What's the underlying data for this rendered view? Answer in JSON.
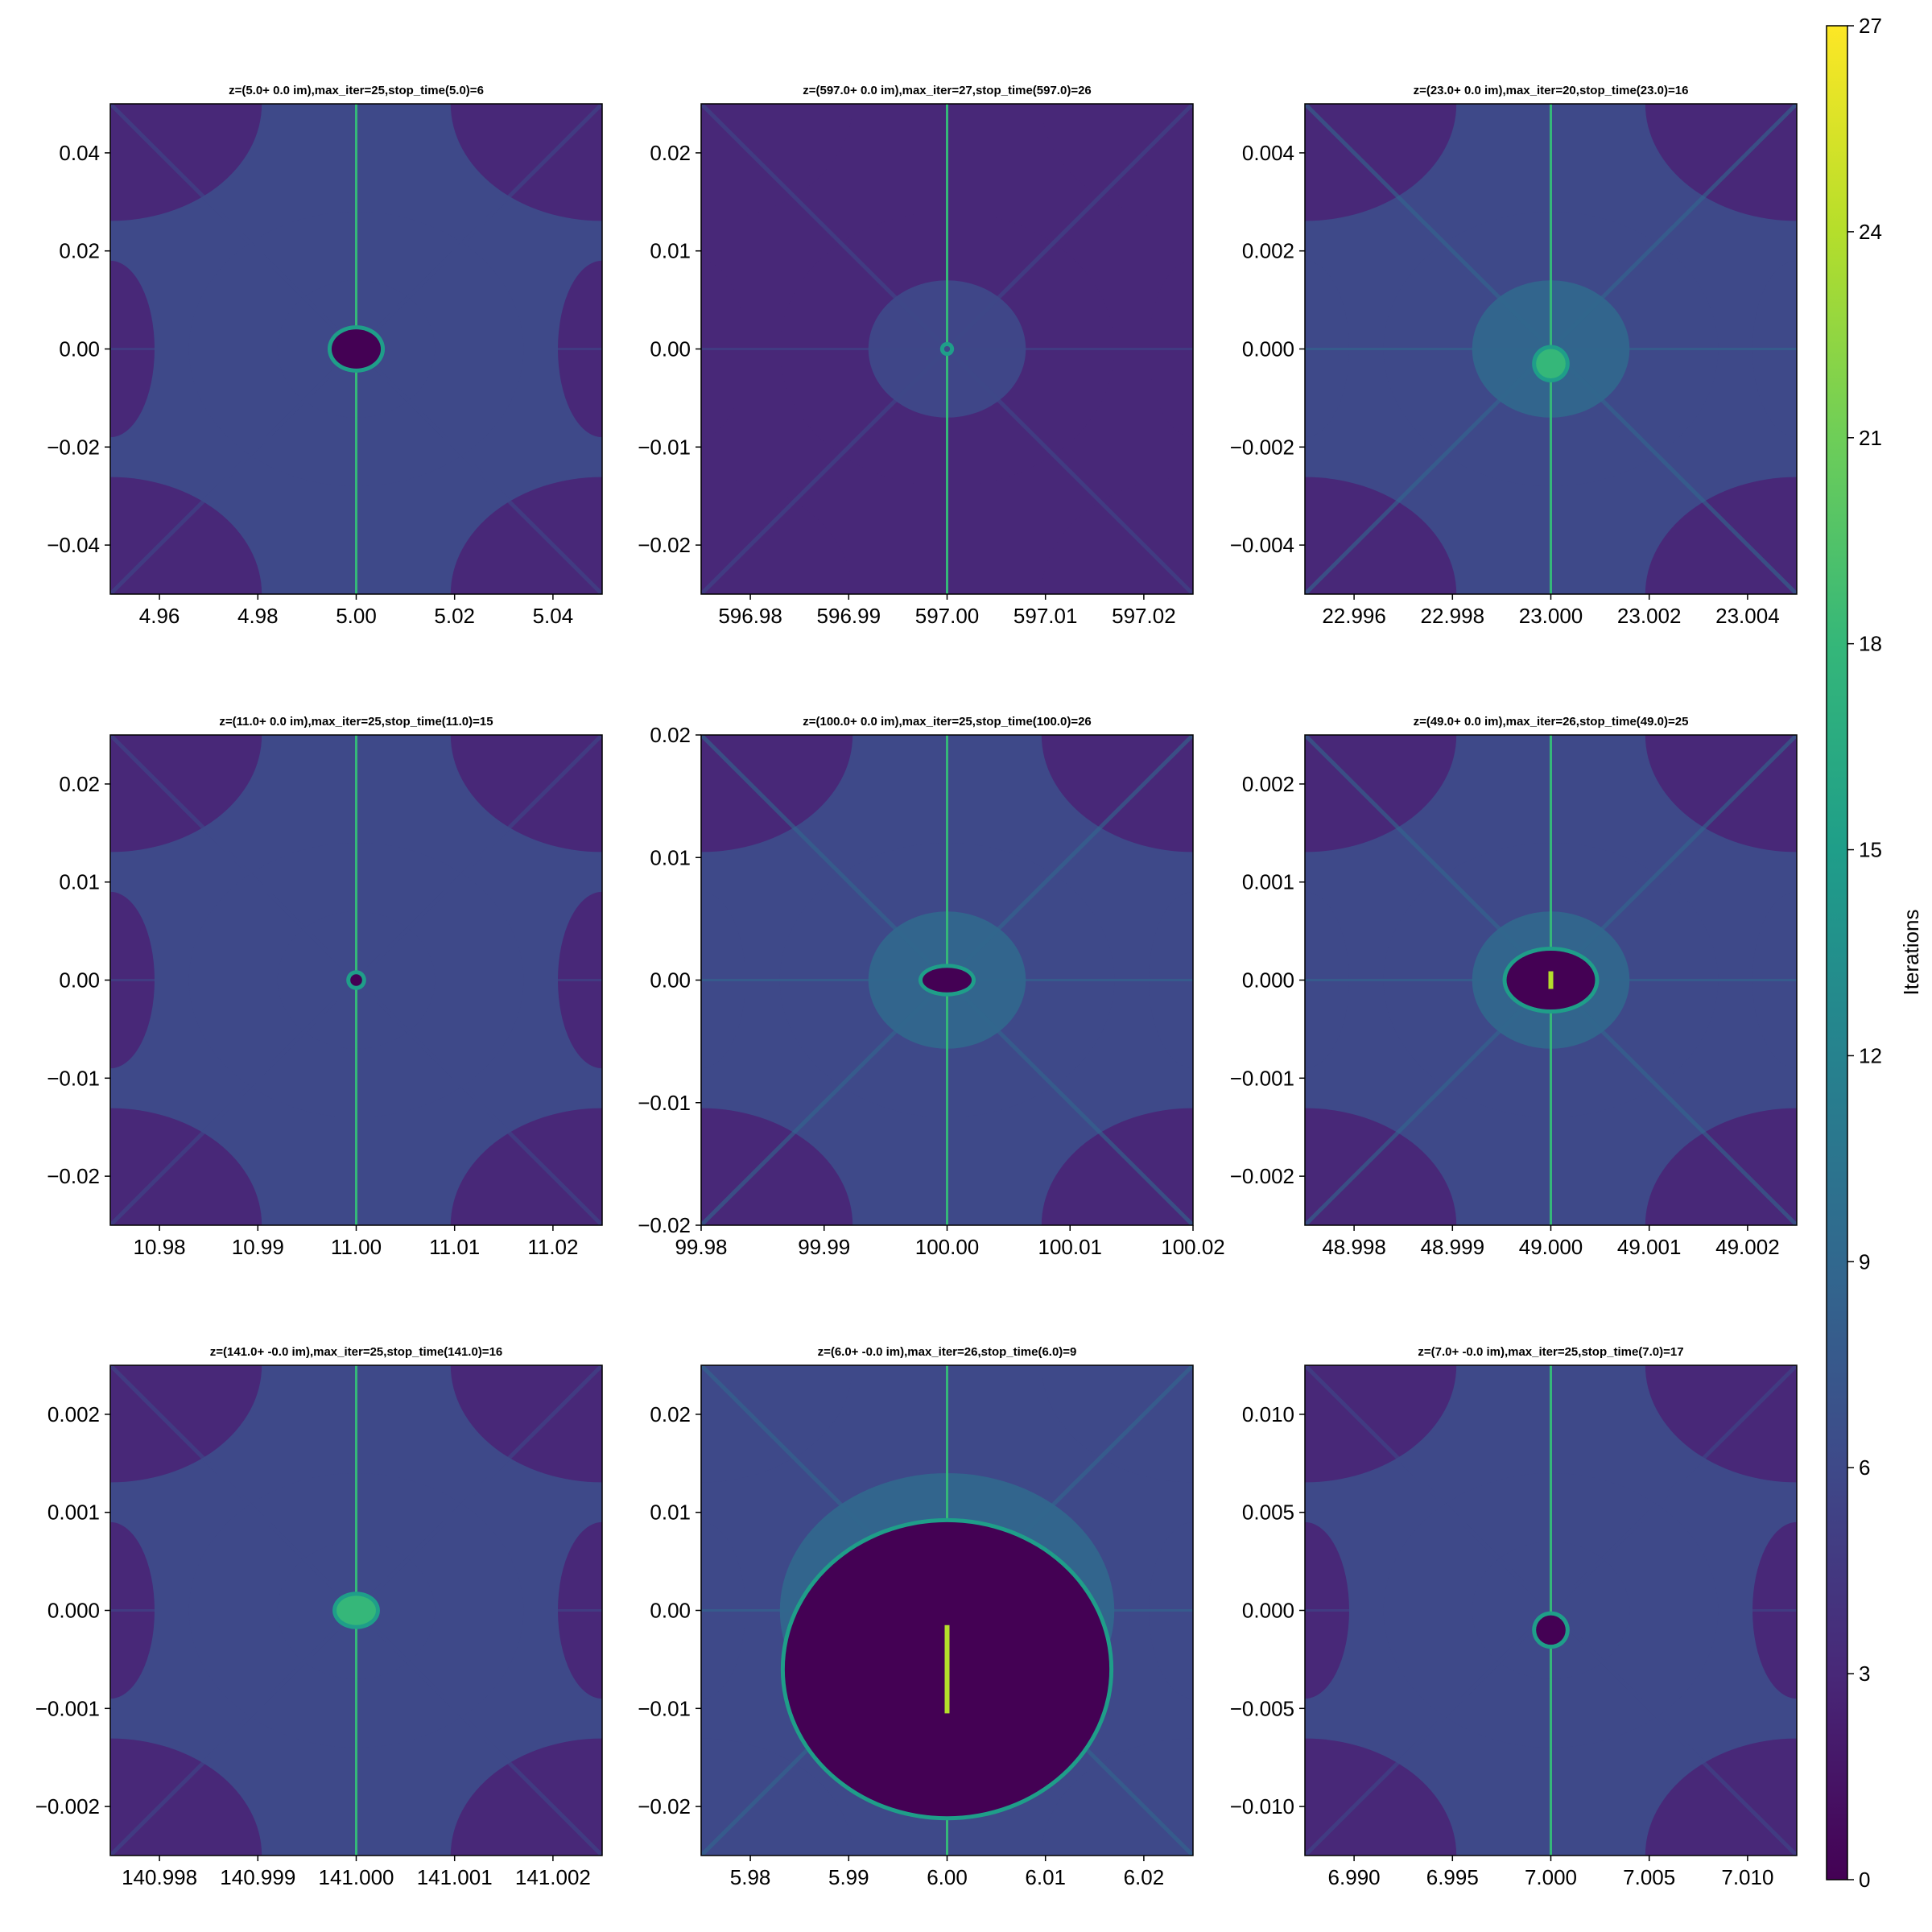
{
  "chart_data": {
    "type": "heatmap",
    "colormap": "viridis",
    "colorbar": {
      "label": "Iterations",
      "range": [
        0,
        27
      ],
      "ticks": [
        "0",
        "3",
        "6",
        "9",
        "12",
        "15",
        "18",
        "21",
        "24",
        "27"
      ]
    },
    "panels": [
      {
        "title": "z=(5.0+ 0.0 im),max_iter=25,stop_time(5.0)=6",
        "xlim": [
          4.95,
          5.05
        ],
        "ylim": [
          -0.05,
          0.05
        ],
        "xticks": [
          {
            "v": 4.96,
            "t": "4.96"
          },
          {
            "v": 4.98,
            "t": "4.98"
          },
          {
            "v": 5.0,
            "t": "5.00"
          },
          {
            "v": 5.02,
            "t": "5.02"
          },
          {
            "v": 5.04,
            "t": "5.04"
          }
        ],
        "yticks": [
          {
            "v": 0.04,
            "t": "0.04"
          },
          {
            "v": 0.02,
            "t": "0.02"
          },
          {
            "v": 0,
            "t": "0.00"
          },
          {
            "v": -0.02,
            "t": "−0.02"
          },
          {
            "v": -0.04,
            "t": "−0.04"
          }
        ],
        "background_level": 5,
        "center_blob": {
          "rx": 0.05,
          "ry": 0.04,
          "cy": 0.0,
          "inner_level": 0
        }
      },
      {
        "title": "z=(597.0+ 0.0 im),max_iter=27,stop_time(597.0)=26",
        "xlim": [
          596.975,
          597.025
        ],
        "ylim": [
          -0.025,
          0.025
        ],
        "xticks": [
          {
            "v": 596.98,
            "t": "596.98"
          },
          {
            "v": 596.99,
            "t": "596.99"
          },
          {
            "v": 597.0,
            "t": "597.00"
          },
          {
            "v": 597.01,
            "t": "597.01"
          },
          {
            "v": 597.02,
            "t": "597.02"
          }
        ],
        "yticks": [
          {
            "v": 0.02,
            "t": "0.02"
          },
          {
            "v": 0.01,
            "t": "0.01"
          },
          {
            "v": 0,
            "t": "0.00"
          },
          {
            "v": -0.01,
            "t": "−0.01"
          },
          {
            "v": -0.02,
            "t": "−0.02"
          }
        ],
        "background_level": 3,
        "center_blob": {
          "rx": 0.006,
          "ry": 0.006,
          "cy": 0.0,
          "inner_level": 7
        }
      },
      {
        "title": "z=(23.0+ 0.0 im),max_iter=20,stop_time(23.0)=16",
        "xlim": [
          22.995,
          23.005
        ],
        "ylim": [
          -0.005,
          0.005
        ],
        "xticks": [
          {
            "v": 22.996,
            "t": "22.996"
          },
          {
            "v": 22.998,
            "t": "22.998"
          },
          {
            "v": 23.0,
            "t": "23.000"
          },
          {
            "v": 23.002,
            "t": "23.002"
          },
          {
            "v": 23.004,
            "t": "23.004"
          }
        ],
        "yticks": [
          {
            "v": 0.004,
            "t": "0.004"
          },
          {
            "v": 0.002,
            "t": "0.002"
          },
          {
            "v": 0,
            "t": "0.000"
          },
          {
            "v": -0.002,
            "t": "−0.002"
          },
          {
            "v": -0.004,
            "t": "−0.004"
          }
        ],
        "background_level": 6,
        "center_blob": {
          "rx": 0.03,
          "ry": 0.03,
          "cy": -0.03,
          "inner_level": 19
        }
      },
      {
        "title": "z=(11.0+ 0.0 im),max_iter=25,stop_time(11.0)=15",
        "xlim": [
          10.975,
          11.025
        ],
        "ylim": [
          -0.025,
          0.025
        ],
        "xticks": [
          {
            "v": 10.98,
            "t": "10.98"
          },
          {
            "v": 10.99,
            "t": "10.99"
          },
          {
            "v": 11.0,
            "t": "11.00"
          },
          {
            "v": 11.01,
            "t": "11.01"
          },
          {
            "v": 11.02,
            "t": "11.02"
          }
        ],
        "yticks": [
          {
            "v": 0.02,
            "t": "0.02"
          },
          {
            "v": 0.01,
            "t": "0.01"
          },
          {
            "v": 0,
            "t": "0.00"
          },
          {
            "v": -0.01,
            "t": "−0.01"
          },
          {
            "v": -0.02,
            "t": "−0.02"
          }
        ],
        "background_level": 5,
        "center_blob": {
          "rx": 0.012,
          "ry": 0.012,
          "cy": 0.0,
          "inner_level": 0
        }
      },
      {
        "title": "z=(100.0+ 0.0 im),max_iter=25,stop_time(100.0)=26",
        "xlim": [
          99.98,
          100.02
        ],
        "ylim": [
          -0.02,
          0.02
        ],
        "xticks": [
          {
            "v": 99.98,
            "t": "99.98"
          },
          {
            "v": 99.99,
            "t": "99.99"
          },
          {
            "v": 100.0,
            "t": "100.00"
          },
          {
            "v": 100.01,
            "t": "100.01"
          },
          {
            "v": 100.02,
            "t": "100.02"
          }
        ],
        "yticks": [
          {
            "v": 0.02,
            "t": "0.02"
          },
          {
            "v": 0.01,
            "t": "0.01"
          },
          {
            "v": 0,
            "t": "0.00"
          },
          {
            "v": -0.01,
            "t": "−0.01"
          },
          {
            "v": -0.02,
            "t": "−0.02"
          }
        ],
        "background_level": 6,
        "center_blob": {
          "rx": 0.05,
          "ry": 0.025,
          "cy": 0.0,
          "inner_level": 0
        }
      },
      {
        "title": "z=(49.0+ 0.0 im),max_iter=26,stop_time(49.0)=25",
        "xlim": [
          48.9975,
          49.0025
        ],
        "ylim": [
          -0.0025,
          0.0025
        ],
        "xticks": [
          {
            "v": 48.998,
            "t": "48.998"
          },
          {
            "v": 48.999,
            "t": "48.999"
          },
          {
            "v": 49.0,
            "t": "49.000"
          },
          {
            "v": 49.001,
            "t": "49.001"
          },
          {
            "v": 49.002,
            "t": "49.002"
          }
        ],
        "yticks": [
          {
            "v": 0.002,
            "t": "0.002"
          },
          {
            "v": 0.001,
            "t": "0.001"
          },
          {
            "v": 0,
            "t": "0.000"
          },
          {
            "v": -0.001,
            "t": "−0.001"
          },
          {
            "v": -0.002,
            "t": "−0.002"
          }
        ],
        "background_level": 6,
        "center_blob": {
          "rx": 0.09,
          "ry": 0.06,
          "cy": 0.0,
          "inner_level": 0
        }
      },
      {
        "title": "z=(141.0+ -0.0 im),max_iter=25,stop_time(141.0)=16",
        "xlim": [
          140.9975,
          141.0025
        ],
        "ylim": [
          -0.0025,
          0.0025
        ],
        "xticks": [
          {
            "v": 140.998,
            "t": "140.998"
          },
          {
            "v": 140.999,
            "t": "140.999"
          },
          {
            "v": 141.0,
            "t": "141.000"
          },
          {
            "v": 141.001,
            "t": "141.001"
          },
          {
            "v": 141.002,
            "t": "141.002"
          }
        ],
        "yticks": [
          {
            "v": 0.002,
            "t": "0.002"
          },
          {
            "v": 0.001,
            "t": "0.001"
          },
          {
            "v": 0,
            "t": "0.000"
          },
          {
            "v": -0.001,
            "t": "−0.001"
          },
          {
            "v": -0.002,
            "t": "−0.002"
          }
        ],
        "background_level": 5,
        "center_blob": {
          "rx": 0.04,
          "ry": 0.03,
          "cy": 0.0,
          "inner_level": 17
        }
      },
      {
        "title": "z=(6.0+ -0.0 im),max_iter=26,stop_time(6.0)=9",
        "xlim": [
          5.975,
          6.025
        ],
        "ylim": [
          -0.025,
          0.025
        ],
        "xticks": [
          {
            "v": 5.98,
            "t": "5.98"
          },
          {
            "v": 5.99,
            "t": "5.99"
          },
          {
            "v": 6.0,
            "t": "6.00"
          },
          {
            "v": 6.01,
            "t": "6.01"
          },
          {
            "v": 6.02,
            "t": "6.02"
          }
        ],
        "yticks": [
          {
            "v": 0.02,
            "t": "0.02"
          },
          {
            "v": 0.01,
            "t": "0.01"
          },
          {
            "v": 0,
            "t": "0.00"
          },
          {
            "v": -0.01,
            "t": "−0.01"
          },
          {
            "v": -0.02,
            "t": "−0.02"
          }
        ],
        "background_level": 7,
        "center_blob": {
          "rx": 0.33,
          "ry": 0.3,
          "cy": -0.12,
          "inner_level": 0
        }
      },
      {
        "title": "z=(7.0+ -0.0 im),max_iter=25,stop_time(7.0)=17",
        "xlim": [
          6.9875,
          7.0125
        ],
        "ylim": [
          -0.0125,
          0.0125
        ],
        "xticks": [
          {
            "v": 6.99,
            "t": "6.990"
          },
          {
            "v": 6.995,
            "t": "6.995"
          },
          {
            "v": 7.0,
            "t": "7.000"
          },
          {
            "v": 7.005,
            "t": "7.005"
          },
          {
            "v": 7.01,
            "t": "7.010"
          }
        ],
        "yticks": [
          {
            "v": 0.01,
            "t": "0.010"
          },
          {
            "v": 0.005,
            "t": "0.005"
          },
          {
            "v": 0,
            "t": "0.000"
          },
          {
            "v": -0.005,
            "t": "−0.005"
          },
          {
            "v": -0.01,
            "t": "−0.010"
          }
        ],
        "background_level": 5,
        "center_blob": {
          "rx": 0.03,
          "ry": 0.03,
          "cy": -0.04,
          "inner_level": 0
        }
      }
    ]
  }
}
